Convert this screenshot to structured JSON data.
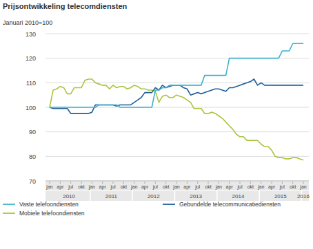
{
  "chart_data": {
    "type": "line",
    "title": "Prijsontwikkeling telecomdiensten",
    "subtitle": "Januari 2010=100",
    "categories": [
      "jan",
      null,
      null,
      "apr",
      null,
      null,
      "jul",
      null,
      null,
      "okt",
      null,
      null,
      "jan",
      null,
      null,
      "apr",
      null,
      null,
      "jul",
      null,
      null,
      "okt",
      null,
      null,
      "jan",
      null,
      null,
      "apr",
      null,
      null,
      "jul",
      null,
      null,
      "okt",
      null,
      null,
      "jan",
      null,
      null,
      "apr",
      null,
      null,
      "jul",
      null,
      null,
      "okt",
      null,
      null,
      "jan",
      null,
      null,
      "apr",
      null,
      null,
      "jul",
      null,
      null,
      "okt",
      null,
      null,
      "jan",
      null,
      null,
      "apr",
      null,
      null,
      "jul",
      null,
      null,
      "okt",
      null,
      null,
      "jan"
    ],
    "x_groups": [
      "2010",
      "2011",
      "2012",
      "2013",
      "2014",
      "2015",
      "2016"
    ],
    "ylim": [
      70,
      130
    ],
    "yticks": [
      70,
      80,
      90,
      100,
      110,
      120,
      130
    ],
    "grid": true,
    "legend": "bottom",
    "series": [
      {
        "name": "Vaste telefoondiensten",
        "color": "#3fb1cc",
        "values": [
          100,
          100,
          100,
          100,
          100,
          100,
          100,
          100,
          100,
          100,
          100,
          100,
          100,
          100,
          101,
          101,
          101,
          101,
          101,
          101,
          100,
          100,
          100,
          100,
          100,
          100,
          100,
          100,
          100,
          100,
          107,
          107,
          108,
          108,
          109,
          109,
          109,
          109,
          109,
          109,
          109,
          109,
          109,
          109,
          113,
          113,
          113,
          113,
          113,
          113,
          113,
          120,
          120,
          120,
          120,
          120,
          120,
          120,
          120,
          120,
          120,
          120,
          120,
          120,
          120,
          120,
          123,
          123,
          123,
          126,
          126,
          126,
          126
        ]
      },
      {
        "name": "Gebundelde telecommunicatiediensten",
        "color": "#1f5f9c",
        "values": [
          100,
          99.5,
          99.5,
          99.5,
          99.5,
          99.5,
          97.5,
          97.5,
          97.5,
          97.5,
          97.5,
          97.5,
          98,
          101,
          101,
          101,
          101,
          101,
          101,
          100.5,
          101,
          101,
          101,
          101,
          102,
          103,
          104,
          106,
          106,
          106,
          108,
          107,
          109,
          108,
          108.5,
          109,
          109,
          109,
          108,
          107.5,
          105,
          105.5,
          106,
          105.5,
          106,
          106.5,
          107,
          107.5,
          107.5,
          107,
          106.5,
          108,
          108,
          108.5,
          109,
          109.5,
          110,
          110.5,
          111.5,
          109,
          110,
          109,
          109,
          109,
          109,
          109,
          109,
          109,
          109,
          109,
          109,
          109,
          109
        ]
      },
      {
        "name": "Mobiele telefoondiensten",
        "color": "#a8c53d",
        "values": [
          100,
          107,
          107.5,
          108.5,
          108,
          105.5,
          105.5,
          108,
          108,
          108,
          111,
          111.5,
          111.5,
          110,
          109.5,
          109,
          109,
          107.5,
          109,
          108,
          108.5,
          108.5,
          107.5,
          108,
          109,
          108.5,
          107.5,
          107.5,
          107,
          107,
          106.5,
          102,
          104.5,
          105,
          104,
          104,
          105,
          104.5,
          104,
          103,
          102,
          99.5,
          99.5,
          99.5,
          97.5,
          97.5,
          98,
          97.5,
          96.5,
          95.5,
          94,
          92.5,
          91,
          89,
          88,
          88,
          86.5,
          86.5,
          86.5,
          86.5,
          85,
          84,
          84,
          82.5,
          80,
          79.5,
          79.5,
          79,
          79,
          79.5,
          79.5,
          79,
          78.5
        ]
      }
    ]
  }
}
